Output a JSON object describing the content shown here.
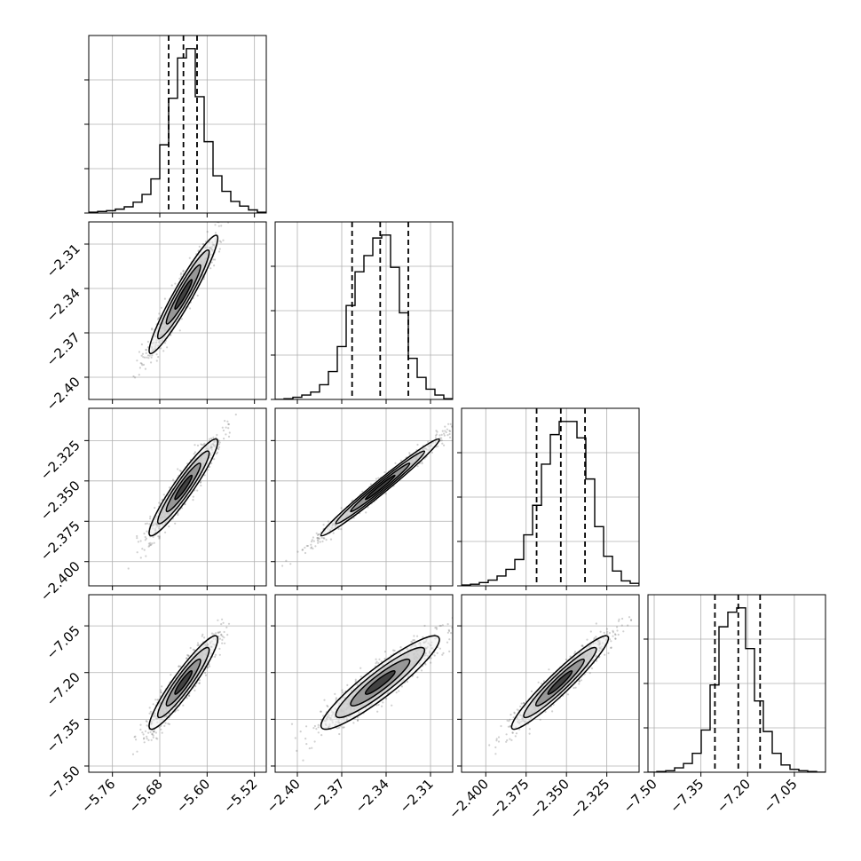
{
  "chart_data": {
    "type": "corner",
    "n_params": 4,
    "style": {
      "hist_color": "#000000",
      "grid_color": "#b0b0b0",
      "sample_color": "#555555",
      "density_colors": [
        "#d0d0d0",
        "#a8a8a8",
        "#6e6e6e",
        "#2a2a2a",
        "#000000"
      ],
      "contour_color": "#000000",
      "quantile_line_style": "dashed",
      "grid": true,
      "tick_rotation_deg": 45
    },
    "axis_limits": [
      [
        -5.8,
        -5.5
      ],
      [
        -2.415,
        -2.295
      ],
      [
        -2.415,
        -2.305
      ],
      [
        -7.52,
        -6.95
      ]
    ],
    "x_ticks": [
      [
        -5.76,
        -5.68,
        -5.6,
        -5.52
      ],
      [
        -2.4,
        -2.37,
        -2.34,
        -2.31
      ],
      [
        -2.4,
        -2.375,
        -2.35,
        -2.325
      ],
      [
        -7.5,
        -7.35,
        -7.2,
        -7.05
      ]
    ],
    "x_tick_labels": [
      [
        "−5.76",
        "−5.68",
        "−5.60",
        "−5.52"
      ],
      [
        "−2.40",
        "−2.37",
        "−2.34",
        "−2.31"
      ],
      [
        "−2.400",
        "−2.375",
        "−2.350",
        "−2.325"
      ],
      [
        "−7.50",
        "−7.35",
        "−7.20",
        "−7.05"
      ]
    ],
    "y_ticks": [
      [],
      [
        -2.4,
        -2.37,
        -2.34,
        -2.31
      ],
      [
        -2.4,
        -2.375,
        -2.35,
        -2.325
      ],
      [
        -7.5,
        -7.35,
        -7.2,
        -7.05
      ]
    ],
    "y_tick_labels": [
      [],
      [
        "−2.40",
        "−2.37",
        "−2.34",
        "−2.31"
      ],
      [
        "−2.400",
        "−2.375",
        "−2.350",
        "−2.325"
      ],
      [
        "−7.50",
        "−7.35",
        "−7.20",
        "−7.05"
      ]
    ],
    "diag_hist_ticks_frac": [
      0.25,
      0.5,
      0.75
    ],
    "diagonals": [
      {
        "param_index": 0,
        "quantiles": [
          -5.665,
          -5.64,
          -5.617
        ],
        "bin_edges": [
          -5.8,
          -5.785,
          -5.77,
          -5.755,
          -5.74,
          -5.725,
          -5.71,
          -5.695,
          -5.68,
          -5.665,
          -5.65,
          -5.635,
          -5.62,
          -5.605,
          -5.59,
          -5.575,
          -5.56,
          -5.545,
          -5.53,
          -5.515,
          -5.5
        ],
        "counts": [
          1,
          2,
          3,
          5,
          8,
          14,
          24,
          44,
          88,
          148,
          200,
          212,
          150,
          92,
          48,
          28,
          15,
          9,
          4,
          1
        ]
      },
      {
        "param_index": 1,
        "quantiles": [
          -2.363,
          -2.344,
          -2.325
        ],
        "bin_edges": [
          -2.415,
          -2.409,
          -2.403,
          -2.397,
          -2.391,
          -2.385,
          -2.379,
          -2.373,
          -2.367,
          -2.361,
          -2.355,
          -2.349,
          -2.343,
          -2.337,
          -2.331,
          -2.325,
          -2.319,
          -2.313,
          -2.307,
          -2.301,
          -2.295
        ],
        "counts": [
          0,
          1,
          3,
          6,
          10,
          20,
          38,
          72,
          128,
          174,
          196,
          220,
          224,
          180,
          118,
          56,
          30,
          14,
          6,
          1
        ]
      },
      {
        "param_index": 2,
        "quantiles": [
          -2.3685,
          -2.3535,
          -2.3385
        ],
        "bin_edges": [
          -2.415,
          -2.4095,
          -2.404,
          -2.3985,
          -2.393,
          -2.3875,
          -2.382,
          -2.3765,
          -2.371,
          -2.3655,
          -2.36,
          -2.3545,
          -2.349,
          -2.3435,
          -2.338,
          -2.3325,
          -2.327,
          -2.3215,
          -2.316,
          -2.3105,
          -2.305
        ],
        "counts": [
          1,
          2,
          4,
          7,
          12,
          20,
          32,
          62,
          98,
          148,
          184,
          200,
          200,
          180,
          130,
          72,
          36,
          18,
          6,
          3
        ]
      },
      {
        "param_index": 3,
        "quantiles": [
          -7.305,
          -7.23,
          -7.16
        ],
        "bin_edges": [
          -7.52,
          -7.4915,
          -7.463,
          -7.4345,
          -7.406,
          -7.3775,
          -7.349,
          -7.3205,
          -7.292,
          -7.2635,
          -7.235,
          -7.2065,
          -7.178,
          -7.1495,
          -7.121,
          -7.0925,
          -7.064,
          -7.0355,
          -7.007,
          -6.9785,
          -6.95
        ],
        "counts": [
          0,
          1,
          2,
          6,
          12,
          26,
          58,
          120,
          200,
          220,
          226,
          170,
          98,
          56,
          26,
          10,
          4,
          2,
          1,
          0
        ]
      }
    ],
    "pairs": [
      {
        "i": 1,
        "j": 0,
        "mean": [
          -5.64,
          -2.344
        ],
        "std": [
          0.029,
          0.02
        ],
        "rho": 0.95
      },
      {
        "i": 2,
        "j": 0,
        "mean": [
          -5.64,
          -2.354
        ],
        "std": [
          0.029,
          0.015
        ],
        "rho": 0.94
      },
      {
        "i": 2,
        "j": 1,
        "mean": [
          -2.344,
          -2.354
        ],
        "std": [
          0.02,
          0.015
        ],
        "rho": 0.985
      },
      {
        "i": 3,
        "j": 0,
        "mean": [
          -5.64,
          -7.232
        ],
        "std": [
          0.029,
          0.075
        ],
        "rho": 0.93
      },
      {
        "i": 3,
        "j": 1,
        "mean": [
          -2.344,
          -7.232
        ],
        "std": [
          0.02,
          0.075
        ],
        "rho": 0.92
      },
      {
        "i": 3,
        "j": 2,
        "mean": [
          -2.354,
          -7.232
        ],
        "std": [
          0.015,
          0.075
        ],
        "rho": 0.95
      }
    ],
    "contour_levels_sigma": [
      0.5,
      1.0,
      1.5,
      2.0
    ],
    "points_per_panel": 1000
  }
}
